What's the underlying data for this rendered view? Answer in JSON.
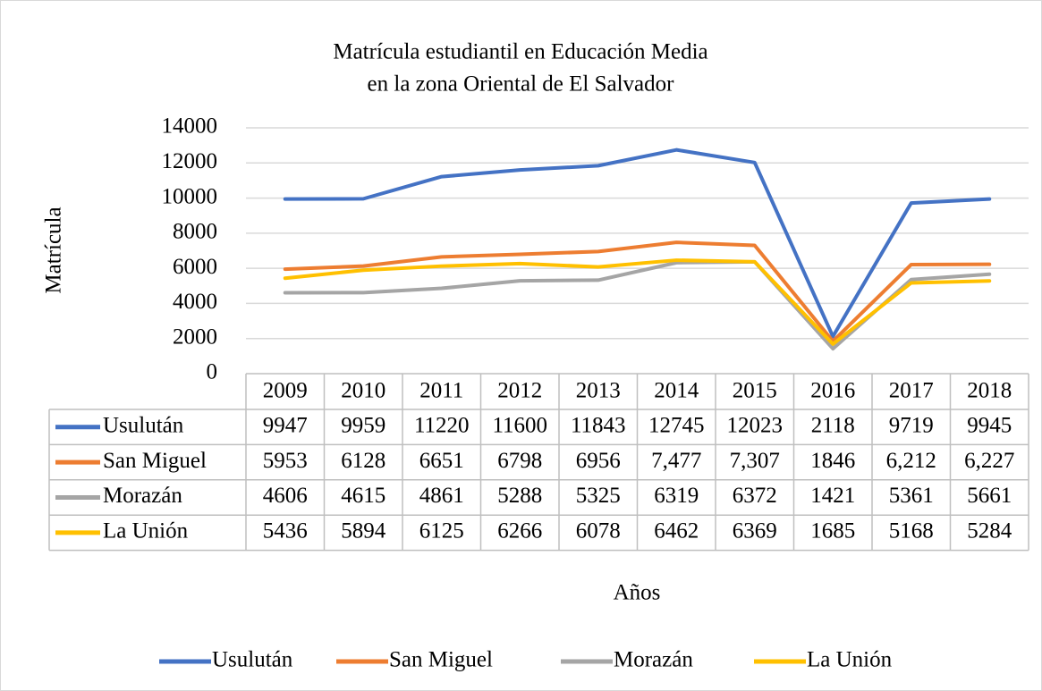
{
  "chart_data": {
    "type": "line",
    "title": [
      "Matrícula estudiantil en Educación Media",
      "en la zona Oriental de El Salvador"
    ],
    "x_label": "Años",
    "y_label": "Matrícula",
    "categories": [
      "2009",
      "2010",
      "2011",
      "2012",
      "2013",
      "2014",
      "2015",
      "2016",
      "2017",
      "2018"
    ],
    "series": [
      {
        "name": "Usulután",
        "color": "#4472c4",
        "values": [
          9947,
          9959,
          11220,
          11600,
          11843,
          12745,
          12023,
          2118,
          9719,
          9945
        ]
      },
      {
        "name": "San Miguel",
        "color": "#ed7d31",
        "values": [
          5953,
          6128,
          6651,
          6798,
          6956,
          7477,
          7307,
          1846,
          6212,
          6227
        ],
        "value_labels": [
          "5953",
          "6128",
          "6651",
          "6798",
          "6956",
          "7,477",
          "7,307",
          "1846",
          "6,212",
          "6,227"
        ]
      },
      {
        "name": "Morazán",
        "color": "#a5a5a5",
        "values": [
          4606,
          4615,
          4861,
          5288,
          5325,
          6319,
          6372,
          1421,
          5361,
          5661
        ]
      },
      {
        "name": "La Unión",
        "color": "#ffc000",
        "values": [
          5436,
          5894,
          6125,
          6266,
          6078,
          6462,
          6369,
          1685,
          5168,
          5284
        ]
      }
    ],
    "ylim": [
      0,
      14000
    ],
    "yticks": [
      0,
      2000,
      4000,
      6000,
      8000,
      10000,
      12000,
      14000
    ],
    "grid": true,
    "legend": "bottom",
    "data_table": true
  }
}
